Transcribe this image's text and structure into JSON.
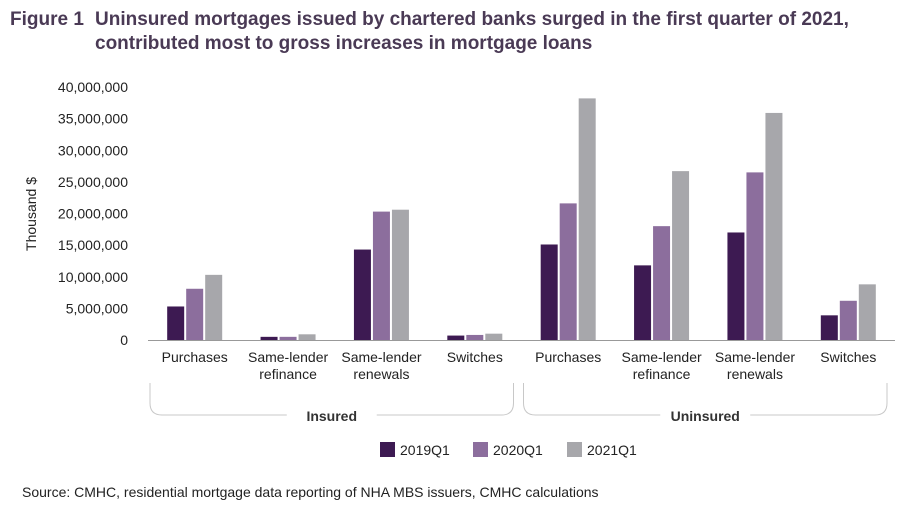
{
  "figure_label": "Figure 1",
  "title_line1": "Uninsured mortgages issued by chartered banks surged in the first quarter of 2021,",
  "title_line2": "contributed most to gross increases in mortgage loans",
  "source": "Source: CMHC, residential mortgage data reporting of NHA MBS issuers, CMHC calculations",
  "chart_data": {
    "type": "bar",
    "ylabel": "Thousand $",
    "ylim": [
      0,
      40000000
    ],
    "yticks": [
      0,
      5000000,
      10000000,
      15000000,
      20000000,
      25000000,
      30000000,
      35000000,
      40000000
    ],
    "ytick_labels": [
      "0",
      "5,000,000",
      "10,000,000",
      "15,000,000",
      "20,000,000",
      "25,000,000",
      "30,000,000",
      "35,000,000",
      "40,000,000"
    ],
    "groups": [
      {
        "name": "Insured",
        "categories": [
          [
            "Purchases"
          ],
          [
            "Same-lender",
            "refinance"
          ],
          [
            "Same-lender",
            "renewals"
          ],
          [
            "Switches"
          ]
        ]
      },
      {
        "name": "Uninsured",
        "categories": [
          [
            "Purchases"
          ],
          [
            "Same-lender",
            "refinance"
          ],
          [
            "Same-lender",
            "renewals"
          ],
          [
            "Switches"
          ]
        ]
      }
    ],
    "categories": [
      "Insured Purchases",
      "Insured Same-lender refinance",
      "Insured Same-lender renewals",
      "Insured Switches",
      "Uninsured Purchases",
      "Uninsured Same-lender refinance",
      "Uninsured Same-lender renewals",
      "Uninsured Switches"
    ],
    "series": [
      {
        "name": "2019Q1",
        "color": "#3d1a52",
        "values": [
          5300000,
          500000,
          14300000,
          700000,
          15100000,
          11800000,
          17000000,
          3900000
        ]
      },
      {
        "name": "2020Q1",
        "color": "#8c6e9d",
        "values": [
          8100000,
          500000,
          20300000,
          800000,
          21600000,
          18000000,
          26500000,
          6200000
        ]
      },
      {
        "name": "2021Q1",
        "color": "#a7a7ab",
        "values": [
          10300000,
          900000,
          20600000,
          1000000,
          38200000,
          26700000,
          35900000,
          8800000
        ]
      }
    ],
    "legend_position": "bottom"
  }
}
